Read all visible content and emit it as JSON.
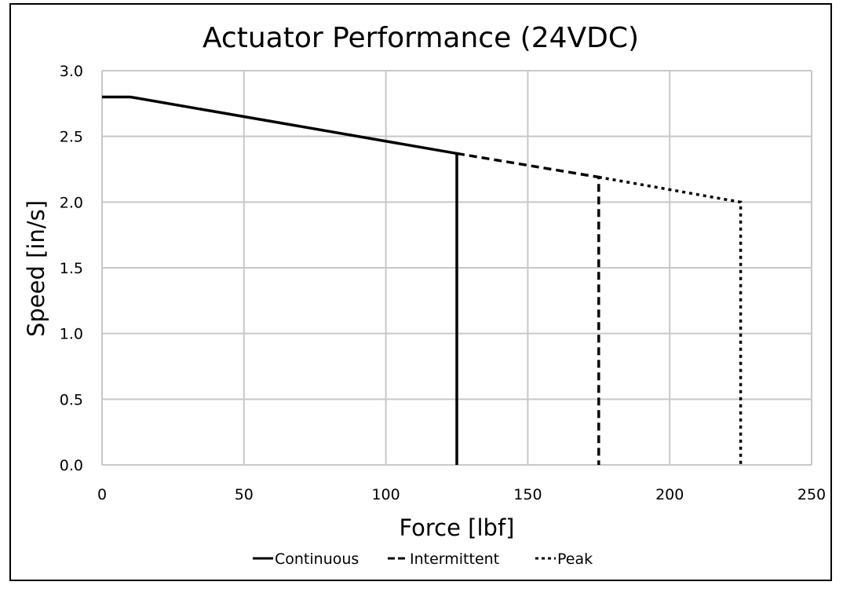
{
  "chart_data": {
    "type": "line",
    "title": "Actuator Performance (24VDC)",
    "xlabel": "Force [lbf]",
    "ylabel": "Speed [in/s]",
    "xlim": [
      0,
      250
    ],
    "ylim": [
      0,
      3.0
    ],
    "x_ticks": [
      0,
      50,
      100,
      150,
      200,
      250
    ],
    "y_ticks": [
      0.0,
      0.5,
      1.0,
      1.5,
      2.0,
      2.5,
      3.0
    ],
    "x_tick_labels": [
      "0",
      "50",
      "100",
      "150",
      "200",
      "250"
    ],
    "y_tick_labels": [
      "0.0",
      "0.5",
      "1.0",
      "1.5",
      "2.0",
      "2.5",
      "3.0"
    ],
    "grid": true,
    "legend_position": "bottom",
    "series": [
      {
        "name": "Continuous",
        "style": "solid",
        "color": "#000000",
        "x": [
          0,
          10,
          125,
          125
        ],
        "y": [
          2.8,
          2.8,
          2.37,
          0.0
        ]
      },
      {
        "name": "Intermittent",
        "style": "dashed",
        "color": "#000000",
        "x": [
          125,
          175,
          175
        ],
        "y": [
          2.37,
          2.19,
          0.0
        ]
      },
      {
        "name": "Peak",
        "style": "dotted",
        "color": "#000000",
        "x": [
          175,
          225,
          225
        ],
        "y": [
          2.19,
          2.0,
          0.0
        ]
      }
    ]
  }
}
